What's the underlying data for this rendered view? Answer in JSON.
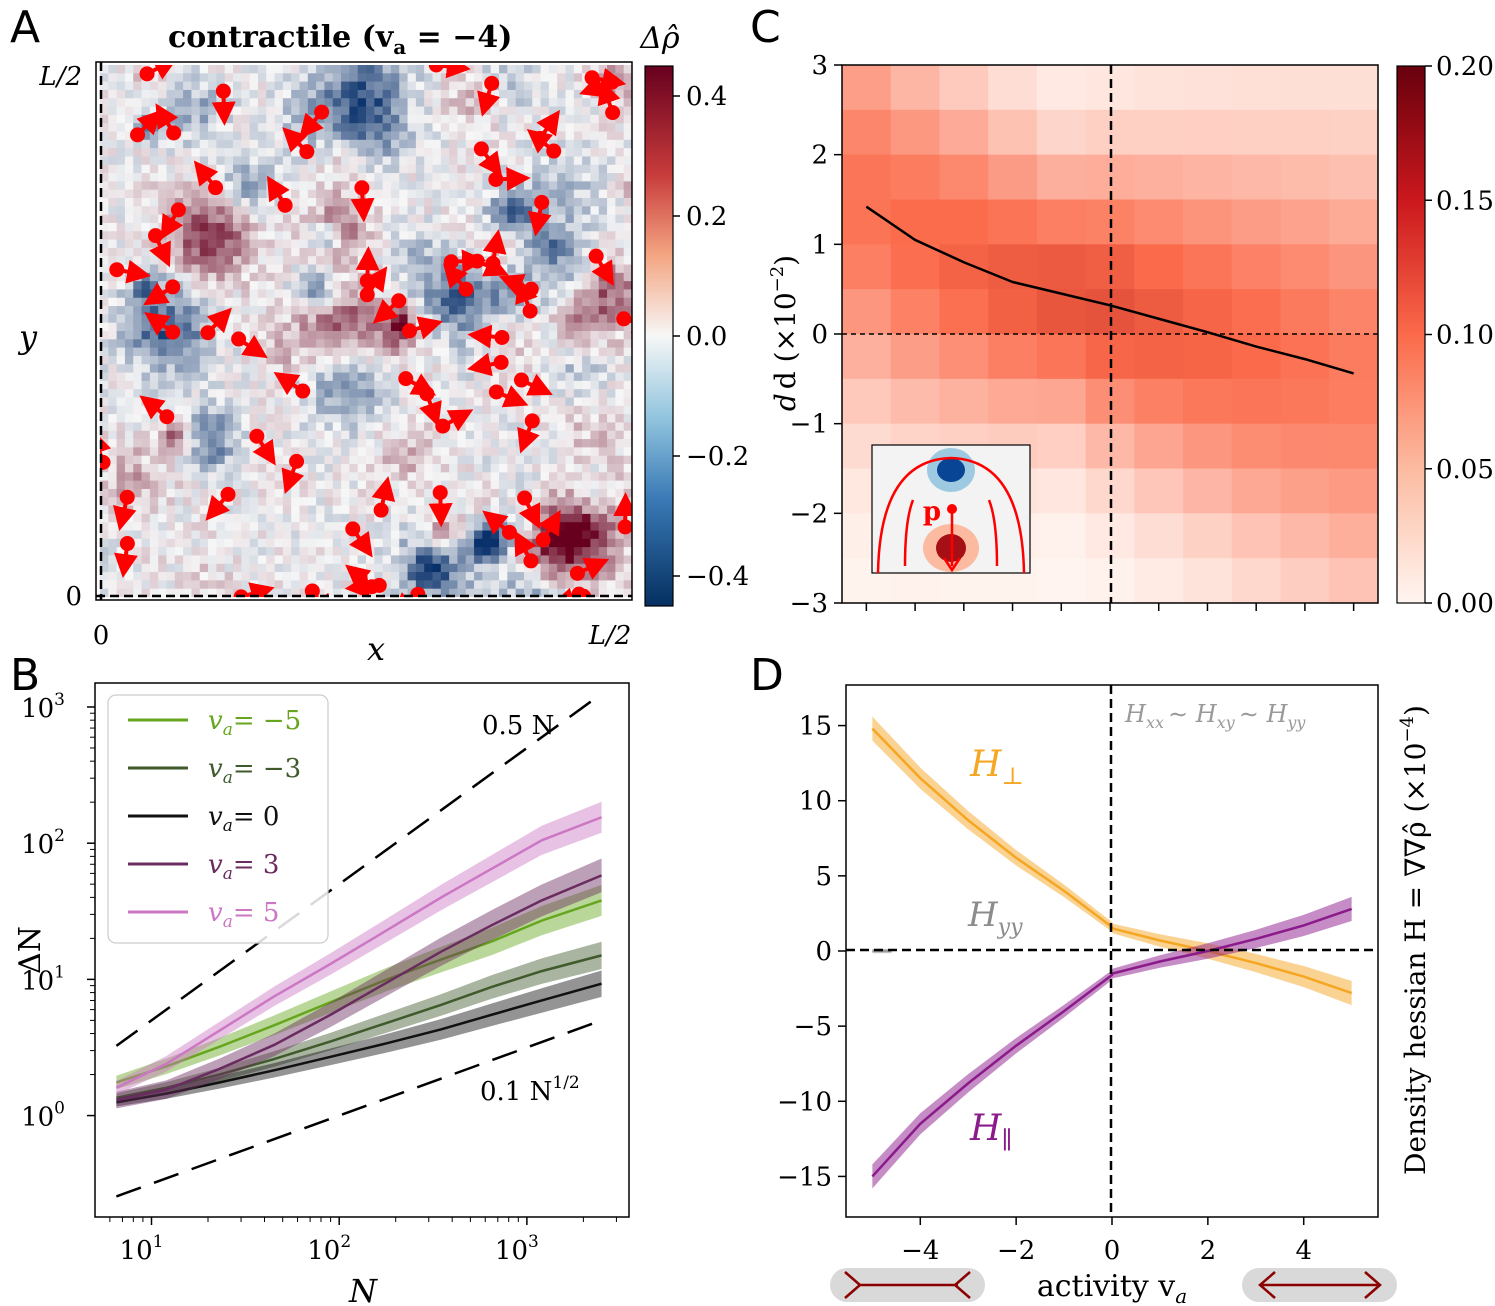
{
  "figure": {
    "panel_a": {
      "letter": "A",
      "title": "contractile (v",
      "title_sub": "a",
      "title_tail": " = −4)",
      "xlabel": "x",
      "ylabel": "y",
      "x_ticks": [
        "0",
        "L/2"
      ],
      "y_ticks": [
        "0",
        "L/2"
      ],
      "colorbar_label": "Δρ̂",
      "colorbar_ticks": [
        "0.4",
        "0.2",
        "0.0",
        "−0.2",
        "−0.4"
      ],
      "colors": {
        "neg": "#08306b",
        "zero": "#f7f7f7",
        "pos": "#67001f",
        "arrow": "#ff0000"
      }
    },
    "panel_b": {
      "letter": "B",
      "xlabel": "N",
      "ylabel": "ΔN",
      "guide_top": "0.5 N",
      "guide_bottom": "0.1 N",
      "guide_bottom_exp": "1/2"
    },
    "panel_c": {
      "letter": "C",
      "ylabel": "d (×10",
      "ylabel_exp": "−2",
      "ylabel_tail": ")",
      "inset_label": "p",
      "colorbar_ticks": [
        "0.20",
        "0.15",
        "0.10",
        "0.05",
        "0.00"
      ]
    },
    "panel_d": {
      "letter": "D",
      "xlabel": "activity v",
      "xlabel_sub": "a",
      "ylabel": "Density hessian H = ∇∇ρ̂ (×10",
      "ylabel_exp": "−4",
      "ylabel_tail": ")",
      "annotation": "H",
      "annotation_full": [
        "xx",
        "∼ H",
        "xy",
        "∼ H",
        "yy"
      ],
      "label_perp": "H",
      "label_perp_sub": "⊥",
      "label_par": "H",
      "label_par_sub": "∥",
      "label_yy": "H",
      "label_yy_sub": "yy"
    }
  },
  "chart_data": [
    {
      "type": "heatmap",
      "panel": "A",
      "title": "contractile (va = −4)",
      "xlabel": "x",
      "ylabel": "y",
      "x_ticks": [
        "0",
        "L/2"
      ],
      "y_ticks": [
        "0",
        "L/2"
      ],
      "colorbar": {
        "label": "Δρ̂",
        "range": [
          -0.45,
          0.45
        ],
        "ticks": [
          0.4,
          0.2,
          0.0,
          -0.2,
          -0.4
        ]
      },
      "description": "Density fluctuation field with red particles showing polarity arrows"
    },
    {
      "type": "line",
      "panel": "B",
      "xscale": "log",
      "yscale": "log",
      "xlim": [
        5,
        3500
      ],
      "ylim": [
        0.18,
        1500
      ],
      "xlabel": "N",
      "ylabel": "ΔN",
      "x_ticks": [
        10,
        100,
        1000
      ],
      "x_tick_labels": [
        "10",
        "10",
        "10"
      ],
      "x_tick_exps": [
        "1",
        "2",
        "3"
      ],
      "y_ticks": [
        1,
        10,
        100,
        1000
      ],
      "y_tick_labels": [
        "10",
        "10",
        "10",
        "10"
      ],
      "y_tick_exps": [
        "0",
        "1",
        "2",
        "3"
      ],
      "legend_position": "top-left",
      "x": [
        6.5,
        12,
        23,
        45,
        90,
        180,
        350,
        650,
        1200,
        2500
      ],
      "series": [
        {
          "name": "va= −5",
          "color": "#66a61e",
          "values": [
            1.75,
            2.3,
            3.2,
            4.6,
            6.8,
            10,
            14,
            19,
            27,
            38
          ],
          "band": 0.12
        },
        {
          "name": "va= −3",
          "color": "#405a2c",
          "values": [
            1.35,
            1.6,
            2.0,
            2.6,
            3.5,
            4.8,
            6.5,
            8.8,
            11.5,
            15
          ],
          "band": 0.08
        },
        {
          "name": "va= 0",
          "color": "#111111",
          "values": [
            1.25,
            1.45,
            1.75,
            2.15,
            2.7,
            3.4,
            4.3,
            5.5,
            7.0,
            9.3
          ],
          "band": 0.07
        },
        {
          "name": "va= 3",
          "color": "#6a2c60",
          "values": [
            1.3,
            1.55,
            2.2,
            3.3,
            5.5,
            9.5,
            16,
            25,
            38,
            58
          ],
          "band": 0.15
        },
        {
          "name": "va= 5",
          "color": "#cc77c4",
          "values": [
            1.6,
            2.4,
            4.2,
            7.5,
            13,
            23,
            40,
            65,
            105,
            155
          ],
          "band": 0.12
        }
      ],
      "guides": [
        {
          "label": "0.5 N",
          "coef": 0.5,
          "exponent": 1
        },
        {
          "label": "0.1 N^(1/2)",
          "coef": 0.1,
          "exponent": 0.5
        }
      ]
    },
    {
      "type": "heatmap",
      "panel": "C",
      "xlim": [
        -5.5,
        5.5
      ],
      "ylim": [
        -3,
        3
      ],
      "ylabel": "d (×10^−2)",
      "y_ticks": [
        3,
        2,
        1,
        0,
        -1,
        -2,
        -3
      ],
      "y_tick_labels": [
        "3",
        "2",
        "1",
        "0",
        "−1",
        "−2",
        "−3"
      ],
      "colorbar": {
        "range": [
          0,
          0.2
        ],
        "ticks": [
          0.2,
          0.15,
          0.1,
          0.05,
          0.0
        ]
      },
      "mean_line": {
        "x": [
          -5,
          -4,
          -3,
          -2,
          -1,
          0,
          1,
          2,
          3,
          4,
          5
        ],
        "y": [
          1.42,
          1.05,
          0.8,
          0.58,
          0.45,
          0.32,
          0.17,
          0.02,
          -0.14,
          -0.28,
          -0.44
        ]
      }
    },
    {
      "type": "line",
      "panel": "D",
      "xlim": [
        -5.55,
        5.55
      ],
      "ylim": [
        -17.7,
        17.7
      ],
      "xlabel": "activity va",
      "ylabel": "Density hessian H = ∇∇ρ̂ (×10^−4)",
      "x_ticks": [
        -4,
        -2,
        0,
        2,
        4
      ],
      "x_tick_labels": [
        "−4",
        "−2",
        "0",
        "2",
        "4"
      ],
      "y_ticks": [
        15,
        10,
        5,
        0,
        -5,
        -10,
        -15
      ],
      "y_tick_labels": [
        "15",
        "10",
        "5",
        "0",
        "−5",
        "−10",
        "−15"
      ],
      "series": [
        {
          "name": "H⊥",
          "color": "#f5a623",
          "x": [
            -5,
            -4,
            -3,
            -2,
            -1,
            0,
            0.01,
            1,
            2,
            3,
            4,
            5
          ],
          "values": [
            14.8,
            11.5,
            8.7,
            6.2,
            4.0,
            1.6,
            1.5,
            0.7,
            0.0,
            -0.8,
            -1.7,
            -2.8
          ],
          "band": 0.8
        },
        {
          "name": "H∥",
          "color": "#8b1a8b",
          "x": [
            -5,
            -4,
            -3,
            -2,
            -1,
            0,
            0.01,
            1,
            2,
            3,
            4,
            5
          ],
          "values": [
            -15.0,
            -11.5,
            -8.8,
            -6.3,
            -4.0,
            -1.6,
            -1.5,
            -0.7,
            0.0,
            0.8,
            1.7,
            2.8
          ],
          "band": 0.8
        },
        {
          "name": "Hyy",
          "color": "#999999",
          "x": [
            -5,
            -4.6
          ],
          "values": [
            0,
            0
          ],
          "band": 0.15
        }
      ]
    }
  ]
}
